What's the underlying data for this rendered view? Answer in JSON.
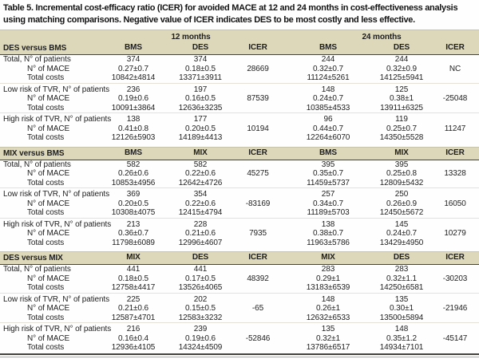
{
  "title": "Table 5. Incremental cost-efficacy ratio (ICER) for avoided MACE at 12 and 24 months in cost-effectiveness analysis using matching comparisons. Negative value of ICER indicates DES to be most costly and less effective.",
  "colors": {
    "band_beige": "#ddd8ba",
    "rule_dark": "#45443b"
  },
  "table": {
    "period_headers": [
      "12 months",
      "24 months"
    ],
    "sections": [
      {
        "name": "DES versus BMS",
        "columns": [
          "BMS",
          "DES",
          "ICER",
          "BMS",
          "DES",
          "ICER"
        ],
        "rows": [
          {
            "label": "Total, N° of patients",
            "indent": 0,
            "sep": false,
            "cells": [
              "374",
              "374",
              "",
              "244",
              "244",
              ""
            ]
          },
          {
            "label": "N° of MACE",
            "indent": 1,
            "sep": false,
            "cells": [
              "0.27±0.7",
              "0.18±0.5",
              "28669",
              "0.32±0.7",
              "0.32±0.9",
              "NC"
            ]
          },
          {
            "label": "Total costs",
            "indent": 1,
            "sep": false,
            "cells": [
              "10842±4814",
              "13371±3911",
              "",
              "11124±5261",
              "14125±5941",
              ""
            ]
          },
          {
            "label": "Low risk of TVR, N° of patients",
            "indent": 0,
            "sep": true,
            "cells": [
              "236",
              "197",
              "",
              "148",
              "125",
              ""
            ]
          },
          {
            "label": "N° of MACE",
            "indent": 1,
            "sep": false,
            "cells": [
              "0.19±0.6",
              "0.16±0.5",
              "87539",
              "0.24±0.7",
              "0.38±1",
              "-25048"
            ]
          },
          {
            "label": "Total costs",
            "indent": 1,
            "sep": false,
            "cells": [
              "10091±3864",
              "12636±3235",
              "",
              "10385±4533",
              "13911±6325",
              ""
            ]
          },
          {
            "label": "High risk of TVR, N° of patients",
            "indent": 0,
            "sep": true,
            "cells": [
              "138",
              "177",
              "",
              "96",
              "119",
              ""
            ]
          },
          {
            "label": "N° of MACE",
            "indent": 1,
            "sep": false,
            "cells": [
              "0.41±0.8",
              "0.20±0.5",
              "10194",
              "0.44±0.7",
              "0.25±0.7",
              "11247"
            ]
          },
          {
            "label": "Total costs",
            "indent": 1,
            "sep": false,
            "cells": [
              "12126±5903",
              "14189±4413",
              "",
              "12264±6070",
              "14350±5528",
              ""
            ]
          }
        ]
      },
      {
        "name": "MIX versus BMS",
        "columns": [
          "BMS",
          "MIX",
          "ICER",
          "BMS",
          "MIX",
          "ICER"
        ],
        "rows": [
          {
            "label": "Total, N° of patients",
            "indent": 0,
            "sep": false,
            "cells": [
              "582",
              "582",
              "",
              "395",
              "395",
              ""
            ]
          },
          {
            "label": "N° of MACE",
            "indent": 1,
            "sep": false,
            "cells": [
              "0.26±0.6",
              "0.22±0.6",
              "45275",
              "0.35±0.7",
              "0.25±0.8",
              "13328"
            ]
          },
          {
            "label": "Total costs",
            "indent": 1,
            "sep": false,
            "cells": [
              "10853±4956",
              "12642±4726",
              "",
              "11459±5737",
              "12809±5432",
              ""
            ]
          },
          {
            "label": "Low risk of TVR, N° of patients",
            "indent": 0,
            "sep": true,
            "cells": [
              "369",
              "354",
              "",
              "257",
              "250",
              ""
            ]
          },
          {
            "label": "N° of MACE",
            "indent": 1,
            "sep": false,
            "cells": [
              "0.20±0.5",
              "0.22±0.6",
              "-83169",
              "0.34±0.7",
              "0.26±0.9",
              "16050"
            ]
          },
          {
            "label": "Total costs",
            "indent": 1,
            "sep": false,
            "cells": [
              "10308±4075",
              "12415±4794",
              "",
              "11189±5703",
              "12450±5672",
              ""
            ]
          },
          {
            "label": "High risk of TVR, N° of patients",
            "indent": 0,
            "sep": true,
            "cells": [
              "213",
              "228",
              "",
              "138",
              "145",
              ""
            ]
          },
          {
            "label": "N° of MACE",
            "indent": 1,
            "sep": false,
            "cells": [
              "0.36±0.7",
              "0.21±0.6",
              "7935",
              "0.38±0.7",
              "0.24±0.7",
              "10279"
            ]
          },
          {
            "label": "Total costs",
            "indent": 1,
            "sep": false,
            "cells": [
              "11798±6089",
              "12996±4607",
              "",
              "11963±5786",
              "13429±4950",
              ""
            ]
          }
        ]
      },
      {
        "name": "DES versus MIX",
        "columns": [
          "MIX",
          "DES",
          "ICER",
          "MIX",
          "DES",
          "ICER"
        ],
        "rows": [
          {
            "label": "Total, N° of patients",
            "indent": 0,
            "sep": false,
            "cells": [
              "441",
              "441",
              "",
              "283",
              "283",
              ""
            ]
          },
          {
            "label": "N° of MACE",
            "indent": 1,
            "sep": false,
            "cells": [
              "0.18±0.5",
              "0.17±0.5",
              "48392",
              "0.29±1",
              "0.32±1.1",
              "-30203"
            ]
          },
          {
            "label": "Total costs",
            "indent": 1,
            "sep": false,
            "cells": [
              "12758±4417",
              "13526±4065",
              "",
              "13183±6539",
              "14250±6581",
              ""
            ]
          },
          {
            "label": "Low risk of TVR, N° of patients",
            "indent": 0,
            "sep": true,
            "cells": [
              "225",
              "202",
              "",
              "148",
              "135",
              ""
            ]
          },
          {
            "label": "N° of MACE",
            "indent": 1,
            "sep": false,
            "cells": [
              "0.21±0.6",
              "0.15±0.5",
              "-65",
              "0.26±1",
              "0.30±1",
              "-21946"
            ]
          },
          {
            "label": "Total costs",
            "indent": 1,
            "sep": false,
            "cells": [
              "12587±4701",
              "12583±3232",
              "",
              "12632±6533",
              "13500±5894",
              ""
            ]
          },
          {
            "label": "High risk of TVR, N° of patients",
            "indent": 0,
            "sep": true,
            "cells": [
              "216",
              "239",
              "",
              "135",
              "148",
              ""
            ]
          },
          {
            "label": "N° of MACE",
            "indent": 1,
            "sep": false,
            "cells": [
              "0.16±0.4",
              "0.19±0.6",
              "-52846",
              "0.32±1",
              "0.35±1.2",
              "-45147"
            ]
          },
          {
            "label": "Total costs",
            "indent": 1,
            "sep": false,
            "cells": [
              "12936±4105",
              "14324±4509",
              "",
              "13786±6517",
              "14934±7101",
              ""
            ]
          }
        ]
      }
    ]
  }
}
